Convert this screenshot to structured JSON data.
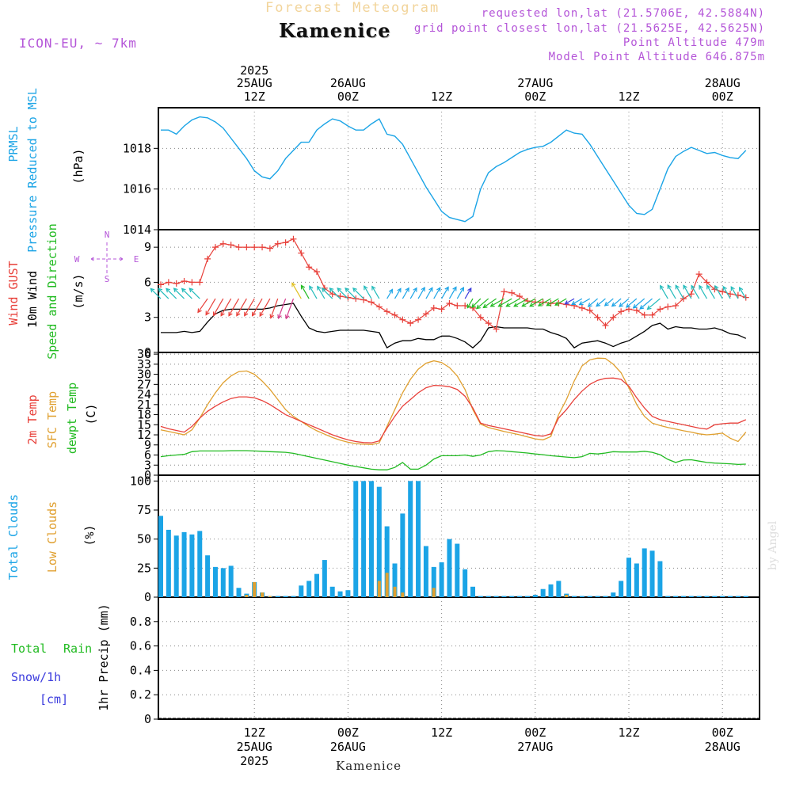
{
  "header": {
    "app_title": "Forecast Meteogram",
    "location": "Kamenice",
    "model": "ICON-EU, ~ 7km",
    "requested_point": "requested lon,lat (21.5706E, 42.5884N)",
    "grid_point": "grid point closest lon,lat (21.5625E, 42.5625N)",
    "point_altitude": "Point Altitude 479m",
    "model_altitude": "Model Point Altitude 646.875m"
  },
  "footer": {
    "location": "Kamenice",
    "credit": "by Angel"
  },
  "time_axis": {
    "top_year": "2025",
    "top_labels": [
      {
        "t": 12,
        "l1": "25AUG",
        "l2": "12Z"
      },
      {
        "t": 24,
        "l1": "26AUG",
        "l2": "00Z"
      },
      {
        "t": 36,
        "l1": "",
        "l2": "12Z"
      },
      {
        "t": 48,
        "l1": "27AUG",
        "l2": "00Z"
      },
      {
        "t": 60,
        "l1": "",
        "l2": "12Z"
      },
      {
        "t": 72,
        "l1": "28AUG",
        "l2": "00Z"
      }
    ],
    "bottom_labels": [
      {
        "t": 12,
        "l1": "12Z",
        "l2": "25AUG",
        "l3": "2025"
      },
      {
        "t": 24,
        "l1": "00Z",
        "l2": "26AUG",
        "l3": ""
      },
      {
        "t": 36,
        "l1": "12Z",
        "l2": "",
        "l3": ""
      },
      {
        "t": 48,
        "l1": "00Z",
        "l2": "27AUG",
        "l3": ""
      },
      {
        "t": 60,
        "l1": "12Z",
        "l2": "",
        "l3": ""
      },
      {
        "t": 72,
        "l1": "00Z",
        "l2": "28AUG",
        "l3": ""
      }
    ]
  },
  "colors": {
    "pressure": "#1ba4e6",
    "gust": "#e8403a",
    "wind": "#000000",
    "temp2m": "#e8403a",
    "sfc": "#e0a030",
    "dewpt": "#22bb22",
    "total_clouds": "#1ba4e6",
    "low_clouds": "#e0a030",
    "rain": "#22bb22",
    "snow": "#3b3bdd",
    "wind_label": "#22bb22",
    "violet": "#b455d8"
  },
  "chart_data": [
    {
      "type": "line",
      "name": "pressure",
      "labels": [
        "PRMSL",
        "Pressure Reduced to MSL",
        "(hPa)"
      ],
      "ylim": [
        1014,
        1020
      ],
      "yticks": [
        1014,
        1016,
        1018
      ],
      "x": [
        0,
        1,
        2,
        3,
        4,
        5,
        6,
        7,
        8,
        9,
        10,
        11,
        12,
        13,
        14,
        15,
        16,
        17,
        18,
        19,
        20,
        21,
        22,
        23,
        24,
        25,
        26,
        27,
        28,
        29,
        30,
        31,
        32,
        33,
        34,
        35,
        36,
        37,
        38,
        39,
        40,
        41,
        42,
        43,
        44,
        45,
        46,
        47,
        48,
        49,
        50,
        51,
        52,
        53,
        54,
        55,
        56,
        57,
        58,
        59,
        60,
        61,
        62,
        63,
        64,
        65,
        66,
        67,
        68,
        69,
        70,
        71,
        72,
        73,
        74,
        75
      ],
      "y": [
        1018.9,
        1018.9,
        1018.7,
        1019.1,
        1019.4,
        1019.55,
        1019.5,
        1019.3,
        1019.0,
        1018.5,
        1018.0,
        1017.5,
        1016.9,
        1016.6,
        1016.5,
        1016.9,
        1017.5,
        1017.9,
        1018.3,
        1018.3,
        1018.9,
        1019.2,
        1019.45,
        1019.35,
        1019.1,
        1018.9,
        1018.9,
        1019.2,
        1019.45,
        1018.7,
        1018.6,
        1018.2,
        1017.5,
        1016.8,
        1016.1,
        1015.5,
        1014.9,
        1014.6,
        1014.5,
        1014.4,
        1014.65,
        1016.0,
        1016.8,
        1017.1,
        1017.3,
        1017.55,
        1017.8,
        1017.95,
        1018.05,
        1018.1,
        1018.3,
        1018.6,
        1018.9,
        1018.75,
        1018.7,
        1018.2,
        1017.6,
        1017.0,
        1016.4,
        1015.8,
        1015.2,
        1014.8,
        1014.75,
        1015.0,
        1016.0,
        1017.0,
        1017.6,
        1017.85,
        1018.05,
        1017.9,
        1017.75,
        1017.8,
        1017.65,
        1017.55,
        1017.5,
        1017.9
      ]
    },
    {
      "type": "line",
      "name": "wind",
      "labels": [
        "Wind GUST",
        "10m Wind",
        "Speed and Direction",
        "(m/s)"
      ],
      "compass": {
        "n": "N",
        "s": "S",
        "w": "W",
        "e": "E"
      },
      "ylim": [
        0,
        10.5
      ],
      "yticks": [
        0,
        3,
        6,
        9
      ],
      "x": [
        0,
        1,
        2,
        3,
        4,
        5,
        6,
        7,
        8,
        9,
        10,
        11,
        12,
        13,
        14,
        15,
        16,
        17,
        18,
        19,
        20,
        21,
        22,
        23,
        24,
        25,
        26,
        27,
        28,
        29,
        30,
        31,
        32,
        33,
        34,
        35,
        36,
        37,
        38,
        39,
        40,
        41,
        42,
        43,
        44,
        45,
        46,
        47,
        48,
        49,
        50,
        51,
        52,
        53,
        54,
        55,
        56,
        57,
        58,
        59,
        60,
        61,
        62,
        63,
        64,
        65,
        66,
        67,
        68,
        69,
        70,
        71,
        72,
        73,
        74,
        75
      ],
      "gust": [
        5.8,
        6.0,
        5.9,
        6.1,
        6.0,
        6.0,
        8.0,
        9.0,
        9.3,
        9.2,
        9.0,
        9.0,
        9.0,
        9.0,
        8.9,
        9.3,
        9.4,
        9.7,
        8.5,
        7.3,
        6.9,
        5.5,
        5.0,
        4.8,
        4.7,
        4.6,
        4.5,
        4.3,
        3.9,
        3.5,
        3.2,
        2.8,
        2.5,
        2.8,
        3.3,
        3.8,
        3.7,
        4.2,
        4.0,
        4.0,
        3.8,
        3.0,
        2.5,
        2.0,
        5.2,
        5.1,
        4.8,
        4.4,
        4.3,
        4.3,
        4.2,
        4.2,
        4.1,
        4.0,
        3.8,
        3.6,
        3.0,
        2.3,
        3.0,
        3.5,
        3.7,
        3.6,
        3.2,
        3.2,
        3.7,
        3.9,
        4.0,
        4.6,
        5.0,
        6.7,
        6.0,
        5.4,
        5.2,
        5.0,
        4.9,
        4.7
      ],
      "speed": [
        1.7,
        1.7,
        1.7,
        1.8,
        1.7,
        1.8,
        2.6,
        3.3,
        3.6,
        3.7,
        3.7,
        3.7,
        3.7,
        3.7,
        3.8,
        4.0,
        4.1,
        4.2,
        3.1,
        2.1,
        1.8,
        1.7,
        1.8,
        1.9,
        1.9,
        1.9,
        1.9,
        1.8,
        1.7,
        0.4,
        0.8,
        1.0,
        1.0,
        1.2,
        1.1,
        1.1,
        1.4,
        1.4,
        1.2,
        0.9,
        0.4,
        1.0,
        2.1,
        2.2,
        2.1,
        2.1,
        2.1,
        2.1,
        2.0,
        2.0,
        1.7,
        1.5,
        1.2,
        0.4,
        0.8,
        0.9,
        1.0,
        0.8,
        0.5,
        0.8,
        1.0,
        1.4,
        1.8,
        2.3,
        2.5,
        2.0,
        2.2,
        2.1,
        2.1,
        2.0,
        2.0,
        2.1,
        1.9,
        1.6,
        1.5,
        1.2
      ],
      "direction_deg": [
        315,
        315,
        315,
        315,
        315,
        315,
        215,
        210,
        210,
        210,
        210,
        210,
        210,
        210,
        210,
        200,
        200,
        200,
        330,
        330,
        330,
        330,
        315,
        315,
        315,
        315,
        315,
        330,
        330,
        30,
        30,
        30,
        30,
        30,
        30,
        30,
        30,
        30,
        30,
        30,
        210,
        225,
        230,
        235,
        240,
        240,
        240,
        240,
        240,
        240,
        240,
        240,
        240,
        240,
        240,
        240,
        230,
        230,
        230,
        230,
        230,
        230,
        230,
        230,
        230,
        330,
        330,
        330,
        330,
        330,
        330,
        330,
        330,
        330,
        330,
        330
      ],
      "arrow_color": [
        "#22bbbb",
        "#22bbbb",
        "#22bbbb",
        "#22bbbb",
        "#22bbbb",
        "#22bbbb",
        "#e8403a",
        "#e8403a",
        "#e8403a",
        "#e8403a",
        "#e8403a",
        "#e8403a",
        "#e8403a",
        "#e8403a",
        "#e8403a",
        "#e8403a",
        "#d43a8a",
        "#d43a8a",
        "#e0c020",
        "#22bb22",
        "#22bbbb",
        "#22bbbb",
        "#22bbbb",
        "#22bbbb",
        "#22bbbb",
        "#22bbbb",
        "#22bbbb",
        "#22bbbb",
        "#22bbbb",
        "#1ba4e6",
        "#1ba4e6",
        "#1ba4e6",
        "#1ba4e6",
        "#1ba4e6",
        "#1ba4e6",
        "#1ba4e6",
        "#1ba4e6",
        "#1ba4e6",
        "#1ba4e6",
        "#3b3bdd",
        "#22bb22",
        "#22bb22",
        "#22bb22",
        "#22bb22",
        "#22bb22",
        "#22bb22",
        "#22bb22",
        "#22bb22",
        "#22bb22",
        "#22bb22",
        "#22bb22",
        "#22bb22",
        "#22bb22",
        "#3b3bdd",
        "#1ba4e6",
        "#1ba4e6",
        "#1ba4e6",
        "#1ba4e6",
        "#1ba4e6",
        "#1ba4e6",
        "#1ba4e6",
        "#1ba4e6",
        "#1ba4e6",
        "#1ba4e6",
        "#22bbbb",
        "#22bbbb",
        "#22bbbb",
        "#22bbbb",
        "#22bbbb",
        "#22bbbb",
        "#22bbbb",
        "#22bbbb",
        "#22bbbb",
        "#22bbbb",
        "#22bbbb",
        "#22bbbb"
      ]
    },
    {
      "type": "line",
      "name": "temperature",
      "labels": [
        "2m Temp",
        "SFC Temp",
        "dewpt Temp",
        "(C)"
      ],
      "ylim": [
        0,
        36.5
      ],
      "yticks": [
        0,
        3,
        6,
        9,
        12,
        15,
        18,
        21,
        24,
        27,
        30,
        33,
        36
      ],
      "x": [
        0,
        1,
        2,
        3,
        4,
        5,
        6,
        7,
        8,
        9,
        10,
        11,
        12,
        13,
        14,
        15,
        16,
        17,
        18,
        19,
        20,
        21,
        22,
        23,
        24,
        25,
        26,
        27,
        28,
        29,
        30,
        31,
        32,
        33,
        34,
        35,
        36,
        37,
        38,
        39,
        40,
        41,
        42,
        43,
        44,
        45,
        46,
        47,
        48,
        49,
        50,
        51,
        52,
        53,
        54,
        55,
        56,
        57,
        58,
        59,
        60,
        61,
        62,
        63,
        64,
        65,
        66,
        67,
        68,
        69,
        70,
        71,
        72,
        73,
        74,
        75
      ],
      "t2m": [
        14.5,
        13.8,
        13.3,
        12.8,
        14.5,
        17.0,
        19.0,
        20.5,
        21.8,
        22.8,
        23.3,
        23.3,
        23.0,
        22.2,
        21.0,
        19.5,
        18.0,
        17.0,
        16.0,
        15.0,
        14.0,
        13.0,
        12.0,
        11.2,
        10.5,
        10.0,
        9.7,
        9.6,
        10.2,
        14.0,
        17.5,
        20.5,
        22.5,
        24.5,
        26.0,
        26.7,
        26.6,
        26.3,
        25.5,
        23.5,
        20.0,
        15.5,
        14.8,
        14.3,
        13.8,
        13.3,
        12.8,
        12.3,
        11.8,
        11.6,
        12.3,
        17.0,
        19.5,
        22.5,
        25.0,
        27.0,
        28.2,
        28.8,
        28.9,
        28.5,
        26.5,
        23.0,
        20.0,
        17.5,
        16.5,
        16.0,
        15.5,
        15.0,
        14.5,
        14.0,
        13.7,
        15.0,
        15.3,
        15.5,
        15.5,
        16.5
      ],
      "sfc": [
        13.5,
        13.0,
        12.5,
        12.0,
        13.5,
        17.0,
        21.0,
        24.5,
        27.5,
        29.5,
        30.8,
        31.0,
        30.0,
        28.0,
        25.5,
        22.5,
        19.5,
        17.5,
        16.0,
        14.5,
        13.2,
        12.2,
        11.2,
        10.4,
        9.8,
        9.4,
        9.2,
        9.1,
        9.6,
        14.5,
        19.5,
        24.5,
        28.5,
        31.5,
        33.3,
        34.0,
        33.5,
        32.0,
        29.5,
        25.5,
        19.5,
        15.2,
        14.2,
        13.6,
        13.0,
        12.5,
        12.0,
        11.4,
        10.8,
        10.5,
        11.5,
        18.0,
        22.5,
        28.0,
        32.5,
        34.3,
        34.8,
        34.7,
        33.0,
        30.5,
        26.0,
        21.0,
        17.5,
        15.5,
        14.8,
        14.2,
        13.7,
        13.2,
        12.8,
        12.3,
        12.0,
        12.2,
        12.5,
        11.0,
        10.0,
        12.8
      ],
      "dewpt": [
        5.5,
        5.8,
        6.0,
        6.2,
        7.0,
        7.2,
        7.2,
        7.2,
        7.2,
        7.3,
        7.3,
        7.3,
        7.2,
        7.1,
        7.0,
        6.9,
        6.8,
        6.5,
        6.0,
        5.5,
        5.0,
        4.5,
        4.0,
        3.5,
        3.0,
        2.6,
        2.2,
        1.8,
        1.6,
        1.6,
        2.3,
        3.8,
        1.8,
        1.8,
        3.0,
        4.8,
        5.8,
        5.8,
        5.8,
        6.0,
        5.6,
        6.0,
        7.0,
        7.3,
        7.2,
        7.0,
        6.8,
        6.6,
        6.3,
        6.1,
        5.8,
        5.6,
        5.4,
        5.2,
        5.5,
        6.5,
        6.3,
        6.6,
        7.0,
        6.9,
        6.9,
        6.9,
        7.1,
        6.8,
        6.1,
        4.7,
        3.8,
        4.5,
        4.6,
        4.2,
        3.8,
        3.6,
        3.5,
        3.4,
        3.2,
        3.3
      ]
    },
    {
      "type": "bar",
      "name": "clouds",
      "labels": [
        "Total Clouds",
        "Low Clouds",
        "(%)"
      ],
      "ylim": [
        0,
        105
      ],
      "yticks": [
        0,
        25,
        50,
        75,
        100
      ],
      "x": [
        0,
        1,
        2,
        3,
        4,
        5,
        6,
        7,
        8,
        9,
        10,
        11,
        12,
        13,
        14,
        15,
        16,
        17,
        18,
        19,
        20,
        21,
        22,
        23,
        24,
        25,
        26,
        27,
        28,
        29,
        30,
        31,
        32,
        33,
        34,
        35,
        36,
        37,
        38,
        39,
        40,
        41,
        42,
        43,
        44,
        45,
        46,
        47,
        48,
        49,
        50,
        51,
        52,
        53,
        54,
        55,
        56,
        57,
        58,
        59,
        60,
        61,
        62,
        63,
        64,
        65,
        66,
        67,
        68,
        69,
        70,
        71,
        72,
        73,
        74,
        75
      ],
      "total": [
        70,
        58,
        53,
        56,
        54,
        57,
        36,
        26,
        25,
        27,
        8,
        3,
        13,
        4,
        1,
        1,
        1,
        1,
        10,
        14,
        20,
        32,
        9,
        5,
        6,
        100,
        100,
        100,
        95,
        61,
        29,
        72,
        100,
        100,
        44,
        26,
        30,
        50,
        46,
        24,
        9,
        1,
        1,
        1,
        1,
        1,
        1,
        1,
        2,
        7,
        11,
        14,
        3,
        1,
        1,
        1,
        1,
        1,
        4,
        14,
        34,
        29,
        42,
        40,
        31,
        1,
        1,
        1,
        1,
        1,
        1,
        1,
        1,
        1,
        1,
        1
      ],
      "low": [
        0,
        0,
        0,
        0,
        0,
        0,
        0,
        0,
        0,
        0,
        0,
        2,
        13,
        4,
        1,
        0,
        0,
        0,
        0,
        0,
        0,
        0,
        0,
        0,
        0,
        0,
        0,
        0,
        14,
        21,
        9,
        4,
        0,
        0,
        0,
        8,
        0,
        0,
        0,
        0,
        0,
        0,
        0,
        0,
        0,
        0,
        0,
        0,
        0,
        0,
        0,
        0,
        2,
        0,
        0,
        0,
        0,
        0,
        0,
        0,
        0,
        0,
        0,
        0,
        0,
        0,
        0,
        0,
        0,
        0,
        0,
        0,
        0,
        0,
        0,
        0
      ]
    },
    {
      "type": "bar",
      "name": "precipitation",
      "labels": [
        "Total",
        "Rain",
        "Snow/1h",
        "[cm]",
        "1hr Precip (mm)"
      ],
      "ylim": [
        0,
        1.0
      ],
      "yticks": [
        0,
        0.2,
        0.4,
        0.6,
        0.8
      ],
      "ytick_labels": [
        "0",
        "0.2",
        "0.4",
        "0.6",
        "0.8"
      ],
      "x": [
        0,
        1,
        2,
        3,
        4,
        5,
        6,
        7,
        8,
        9,
        10,
        11,
        12,
        13,
        14,
        15,
        16,
        17,
        18,
        19,
        20,
        21,
        22,
        23,
        24,
        25,
        26,
        27,
        28,
        29,
        30,
        31,
        32,
        33,
        34,
        35,
        36,
        37,
        38,
        39,
        40,
        41,
        42,
        43,
        44,
        45,
        46,
        47,
        48,
        49,
        50,
        51,
        52,
        53,
        54,
        55,
        56,
        57,
        58,
        59,
        60,
        61,
        62,
        63,
        64,
        65,
        66,
        67,
        68,
        69,
        70,
        71,
        72,
        73,
        74,
        75
      ],
      "values": [
        0,
        0,
        0,
        0,
        0,
        0,
        0,
        0,
        0,
        0,
        0,
        0,
        0,
        0,
        0,
        0,
        0,
        0,
        0,
        0,
        0,
        0,
        0,
        0,
        0,
        0,
        0,
        0,
        0,
        0,
        0,
        0,
        0,
        0,
        0,
        0,
        0,
        0,
        0,
        0,
        0,
        0,
        0,
        0,
        0,
        0,
        0,
        0,
        0,
        0,
        0,
        0,
        0,
        0,
        0,
        0,
        0,
        0,
        0,
        0,
        0,
        0,
        0,
        0,
        0,
        0,
        0,
        0,
        0,
        0,
        0,
        0,
        0,
        0,
        0,
        0
      ]
    }
  ]
}
